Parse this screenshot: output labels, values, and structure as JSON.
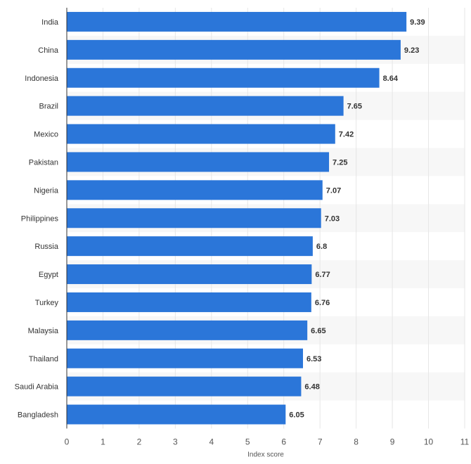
{
  "chart_data": {
    "type": "bar",
    "orientation": "horizontal",
    "categories": [
      "India",
      "China",
      "Indonesia",
      "Brazil",
      "Mexico",
      "Pakistan",
      "Nigeria",
      "Philippines",
      "Russia",
      "Egypt",
      "Turkey",
      "Malaysia",
      "Thailand",
      "Saudi Arabia",
      "Bangladesh"
    ],
    "values": [
      9.39,
      9.23,
      8.64,
      7.65,
      7.42,
      7.25,
      7.07,
      7.03,
      6.8,
      6.77,
      6.76,
      6.65,
      6.53,
      6.48,
      6.05
    ],
    "value_labels": [
      "9.39",
      "9.23",
      "8.64",
      "7.65",
      "7.42",
      "7.25",
      "7.07",
      "7.03",
      "6.8",
      "6.77",
      "6.76",
      "6.65",
      "6.53",
      "6.48",
      "6.05"
    ],
    "xlabel": "Index score",
    "ylabel": "",
    "xlim": [
      0,
      11
    ],
    "xticks": [
      0,
      1,
      2,
      3,
      4,
      5,
      6,
      7,
      8,
      9,
      10,
      11
    ],
    "grid": "vertical",
    "legend": "none",
    "colors": {
      "bar": "#2b76d9",
      "band": "#f7f7f7",
      "grid": "#e6e6e6",
      "axis": "#333333"
    }
  }
}
